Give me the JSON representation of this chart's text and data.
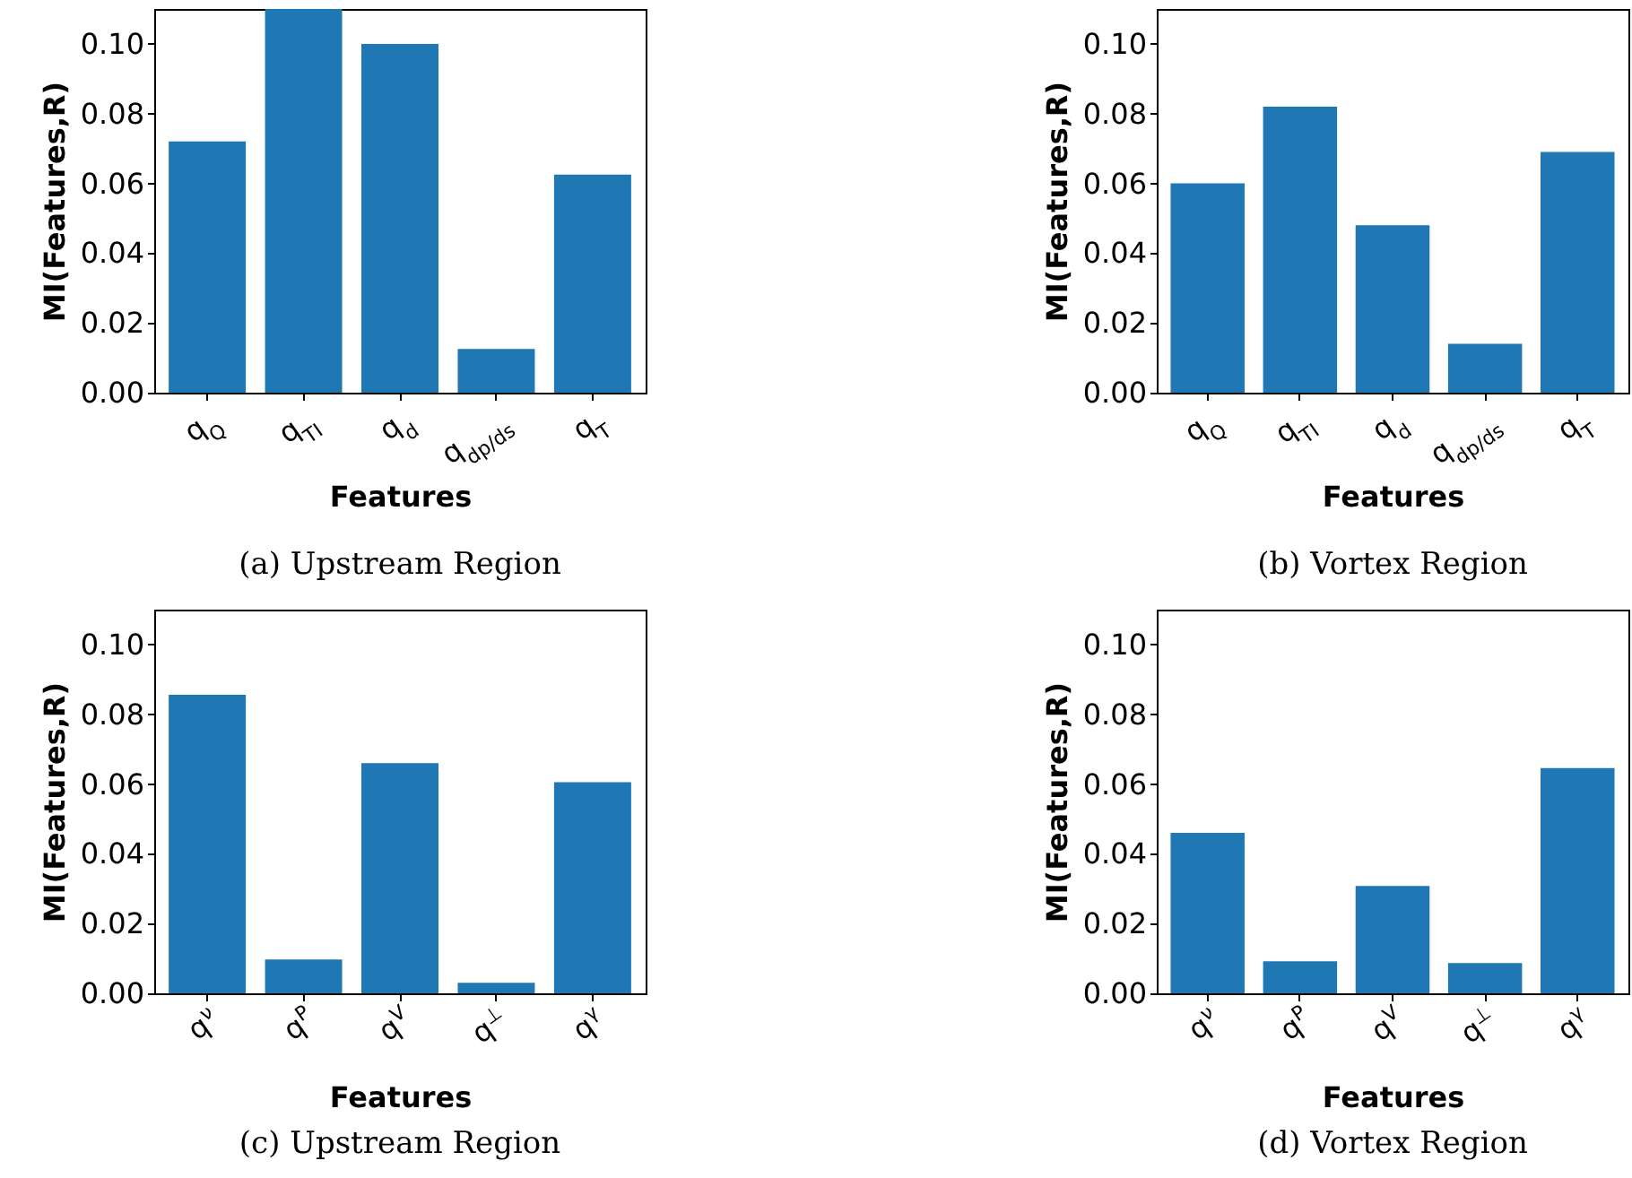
{
  "chart_data": [
    {
      "type": "bar",
      "categories": [
        "q$_{Q}$",
        "q$_{TI}$",
        "q$_{d}$",
        "q$_{dp/ds}$",
        "q$_{T}$"
      ],
      "values": [
        0.072,
        0.11,
        0.1,
        0.0125,
        0.0625
      ],
      "color": "#1f77b4",
      "ylim": [
        0,
        0.11
      ],
      "yticks": [
        {
          "value": 0,
          "label": "0.00"
        },
        {
          "value": 0.02,
          "label": "0.02"
        },
        {
          "value": 0.04,
          "label": "0.04"
        },
        {
          "value": 0.06,
          "label": "0.06"
        },
        {
          "value": 0.08,
          "label": "0.08"
        },
        {
          "value": 0.1,
          "label": "0.10"
        }
      ],
      "xlabel": "Features",
      "ylabel": "MI(Features,R)",
      "annotations": [
        "(a) Upstream Region"
      ]
    },
    {
      "type": "bar",
      "categories": [
        "q$_{Q}$",
        "q$_{TI}$",
        "q$_{d}$",
        "q$_{dp/ds}$",
        "q$_{T}$"
      ],
      "values": [
        0.06,
        0.082,
        0.048,
        0.014,
        0.069
      ],
      "color": "#1f77b4",
      "ylim": [
        0,
        0.11
      ],
      "yticks": [
        {
          "value": 0,
          "label": "0.00"
        },
        {
          "value": 0.02,
          "label": "0.02"
        },
        {
          "value": 0.04,
          "label": "0.04"
        },
        {
          "value": 0.06,
          "label": "0.06"
        },
        {
          "value": 0.08,
          "label": "0.08"
        },
        {
          "value": 0.1,
          "label": "0.10"
        }
      ],
      "xlabel": "Features",
      "ylabel": "MI(Features,R)",
      "annotations": [
        "(b) Vortex Region"
      ]
    },
    {
      "type": "bar",
      "categories": [
        "q$^{ν}$",
        "q$^{P}$",
        "q$^{V}$",
        "q$^{⊥}$",
        "q$^{γ}$"
      ],
      "values": [
        0.0856,
        0.0097,
        0.066,
        0.003,
        0.0605
      ],
      "color": "#1f77b4",
      "ylim": [
        0,
        0.11
      ],
      "yticks": [
        {
          "value": 0,
          "label": "0.00"
        },
        {
          "value": 0.02,
          "label": "0.02"
        },
        {
          "value": 0.04,
          "label": "0.04"
        },
        {
          "value": 0.06,
          "label": "0.06"
        },
        {
          "value": 0.08,
          "label": "0.08"
        },
        {
          "value": 0.1,
          "label": "0.10"
        }
      ],
      "xlabel": "Features",
      "ylabel": "MI(Features,R)",
      "annotations": [
        "(c) Upstream Region"
      ]
    },
    {
      "type": "bar",
      "categories": [
        "q$^{ν}$",
        "q$^{P}$",
        "q$^{V}$",
        "q$^{⊥}$",
        "q$^{γ}$"
      ],
      "values": [
        0.046,
        0.0092,
        0.0308,
        0.0087,
        0.0646
      ],
      "color": "#1f77b4",
      "ylim": [
        0,
        0.11
      ],
      "yticks": [
        {
          "value": 0,
          "label": "0.00"
        },
        {
          "value": 0.02,
          "label": "0.02"
        },
        {
          "value": 0.04,
          "label": "0.04"
        },
        {
          "value": 0.06,
          "label": "0.06"
        },
        {
          "value": 0.08,
          "label": "0.08"
        },
        {
          "value": 0.1,
          "label": "0.10"
        }
      ],
      "xlabel": "Features",
      "ylabel": "MI(Features,R)",
      "annotations": [
        "(d) Vortex Region"
      ]
    }
  ]
}
